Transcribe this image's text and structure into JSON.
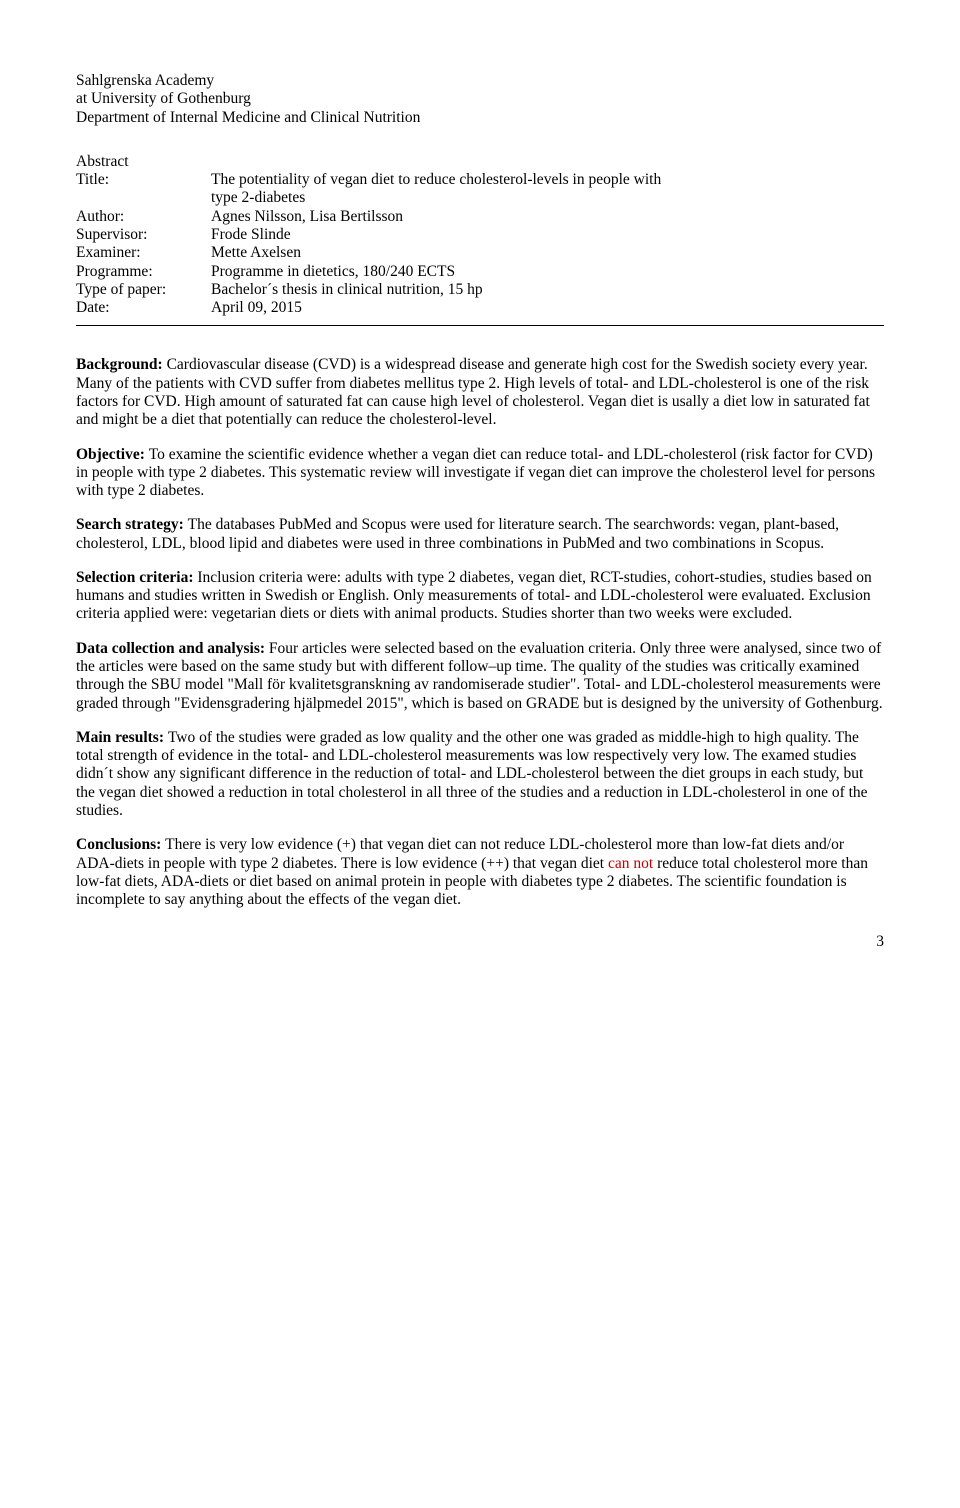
{
  "header": {
    "line1": "Sahlgrenska Academy",
    "line2": "at University of Gothenburg",
    "line3": "Department of Internal Medicine and Clinical Nutrition"
  },
  "abstract_label": "Abstract",
  "meta": {
    "title_label": "Title:",
    "title_value_l1": "The potentiality of vegan diet to reduce cholesterol-levels in people with",
    "title_value_l2": "type 2-diabetes",
    "author_label": "Author:",
    "author_value": "Agnes Nilsson, Lisa Bertilsson",
    "supervisor_label": "Supervisor:",
    "supervisor_value": "Frode Slinde",
    "examiner_label": "Examiner:",
    "examiner_value": "Mette Axelsen",
    "programme_label": "Programme:",
    "programme_value": "Programme in dietetics, 180/240 ECTS",
    "type_label": "Type of paper:",
    "type_value": "Bachelor´s thesis in clinical nutrition, 15 hp",
    "date_label": "Date:",
    "date_value": "April 09, 2015"
  },
  "sections": {
    "background": {
      "label": "Background: ",
      "text": "Cardiovascular disease (CVD) is a widespread disease and generate high cost for the Swedish society every year. Many of the patients with CVD suffer from diabetes mellitus type 2. High levels of total- and LDL-cholesterol is one of the risk factors for CVD. High amount of saturated fat can cause high level of cholesterol. Vegan diet is usally a diet low in saturated fat and might be a diet that potentially can reduce the cholesterol-level."
    },
    "objective": {
      "label": "Objective: ",
      "text": "To examine the scientific evidence whether a vegan diet can reduce total- and LDL-cholesterol (risk factor for CVD) in people with type 2 diabetes. This systematic review will investigate if vegan diet can improve the cholesterol level for persons with type 2 diabetes."
    },
    "search": {
      "label": "Search strategy: ",
      "text": "The databases PubMed and Scopus were used for literature search. The searchwords: vegan, plant-based, cholesterol, LDL, blood lipid and diabetes were used in three combinations in PubMed and two combinations in Scopus."
    },
    "selection": {
      "label": "Selection criteria: ",
      "text": "Inclusion criteria were: adults with type 2 diabetes, vegan diet, RCT-studies, cohort-studies, studies based on humans and studies written in Swedish or English. Only measurements of total- and LDL-cholesterol were evaluated. Exclusion criteria applied were: vegetarian diets or diets with animal products. Studies shorter than two weeks were excluded."
    },
    "data": {
      "label": "Data collection and analysis: ",
      "text": "Four articles were selected based on the evaluation criteria. Only three were analysed, since two of the articles were based on the same study but with different follow–up time. The quality of the studies was critically examined through the SBU model \"Mall för kvalitetsgranskning av randomiserade studier\". Total- and LDL-cholesterol measurements were graded through \"Evidensgradering hjälpmedel 2015\", which is based on GRADE but is designed by the university of Gothenburg."
    },
    "results": {
      "label": "Main results: ",
      "text": "Two of the studies were graded as low quality and the other one was graded as middle-high to high quality. The total strength of evidence in the total- and LDL-cholesterol measurements was low respectively very low. The examed studies didn´t show any significant difference in the reduction of total- and LDL-cholesterol between the diet groups in each study, but the vegan diet showed a reduction in total cholesterol in all three of the studies and a reduction in LDL-cholesterol in one of the studies."
    },
    "conclusions": {
      "label": "Conclusions: ",
      "text_part1": "There is very low evidence (+) that vegan diet can not reduce LDL-cholesterol more than low-fat diets and/or ADA-diets in people with type 2 diabetes. There is low evidence (++) that vegan diet ",
      "text_red": "can not",
      "text_part2": " reduce total cholesterol more than low-fat diets, ADA-diets or diet based on animal protein in people with diabetes type 2 diabetes. The scientific foundation is incomplete to say anything about the effects of the vegan diet."
    }
  },
  "page_number": "3",
  "colors": {
    "text": "#000000",
    "red_text": "#c00000",
    "background": "#ffffff"
  }
}
